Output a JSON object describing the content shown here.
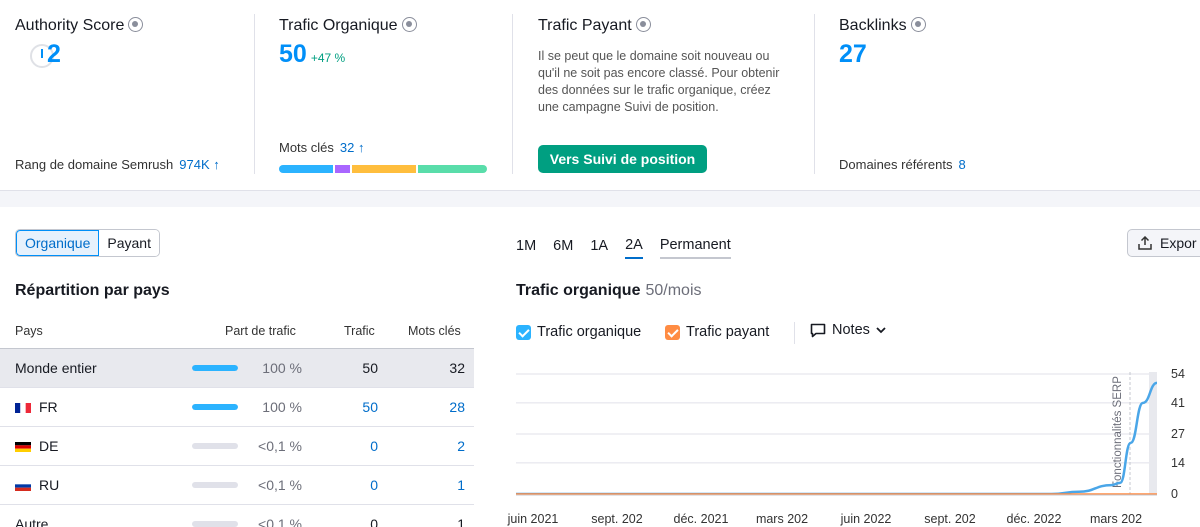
{
  "summary": {
    "authority": {
      "title": "Authority Score",
      "value": "2",
      "rank_label": "Rang de domaine Semrush",
      "rank_value": "974K ↑"
    },
    "organic": {
      "title": "Trafic Organique",
      "value": "50",
      "delta": "+47 %",
      "keywords_label": "Mots clés",
      "keywords_value": "32 ↑",
      "keyword_segments": [
        {
          "share": 0.26,
          "color": "#2bb3ff"
        },
        {
          "share": 0.08,
          "color": "#a966ff"
        },
        {
          "share": 0.32,
          "color": "#ffbe3d"
        },
        {
          "share": 0.34,
          "color": "#59ddaa"
        }
      ]
    },
    "paid": {
      "title": "Trafic Payant",
      "message": "Il se peut que le domaine soit nouveau ou qu'il ne soit pas encore classé. Pour obtenir des données sur le trafic organique, créez une campagne Suivi de position.",
      "cta": "Vers Suivi de position"
    },
    "backlinks": {
      "title": "Backlinks",
      "value": "27",
      "ref_label": "Domaines référents",
      "ref_value": "8"
    }
  },
  "toggle": {
    "organic": "Organique",
    "paid": "Payant"
  },
  "countries": {
    "title": "Répartition par pays",
    "headers": {
      "country": "Pays",
      "share": "Part de trafic",
      "traffic": "Trafic",
      "keywords": "Mots clés"
    },
    "rows": [
      {
        "name": "Monde entier",
        "share": "100 %",
        "share_value": 1.0,
        "traffic": "50",
        "keywords": "32",
        "flag": ""
      },
      {
        "name": "FR",
        "share": "100 %",
        "share_value": 1.0,
        "traffic": "50",
        "keywords": "28",
        "flag": "fr-flag-icon"
      },
      {
        "name": "DE",
        "share": "<0,1 %",
        "share_value": 0,
        "traffic": "0",
        "keywords": "2",
        "flag": "de-flag-icon"
      },
      {
        "name": "RU",
        "share": "<0,1 %",
        "share_value": 0,
        "traffic": "0",
        "keywords": "1",
        "flag": "ru-flag-icon"
      },
      {
        "name": "Autre",
        "share": "<0,1 %",
        "share_value": 0,
        "traffic": "0",
        "keywords": "1",
        "flag": ""
      }
    ]
  },
  "periods": [
    "1M",
    "6M",
    "1A",
    "2A",
    "Permanent"
  ],
  "active_period": "2A",
  "export_label": "Expor",
  "traffic_chart": {
    "title": "Trafic organique",
    "subtitle": "50/mois",
    "legend_organic": "Trafic organique",
    "legend_paid": "Trafic payant",
    "notes": "Notes",
    "serp_label": "Fonctionnalités SERP",
    "colors": {
      "organic": "#4aa6e8",
      "paid": "#ff8c43",
      "organic_check": "#2bb3ff",
      "paid_check": "#ff8c43"
    }
  },
  "chart_data": {
    "type": "line",
    "title": "Trafic organique",
    "subtitle": "50/mois",
    "x_tick_labels": [
      "juin 2021",
      "sept. 202",
      "déc. 2021",
      "mars 202",
      "juin 2022",
      "sept. 202",
      "déc. 2022",
      "mars 202"
    ],
    "y_tick_labels": [
      "54",
      "41",
      "27",
      "14",
      "0"
    ],
    "ylim": [
      0,
      54
    ],
    "grid": true,
    "series": [
      {
        "name": "Trafic organique",
        "x": [
          "2021-05",
          "2021-08",
          "2021-11",
          "2022-02",
          "2022-05",
          "2022-08",
          "2022-11",
          "2023-01",
          "2023-02",
          "2023-03-10",
          "2023-03-20",
          "2023-04",
          "2023-04-15",
          "2023-05"
        ],
        "y": [
          0,
          0,
          0,
          0,
          0,
          0,
          0,
          0,
          1,
          4,
          5,
          23,
          41,
          50
        ]
      },
      {
        "name": "Trafic payant",
        "x": [
          "2021-05",
          "2023-05"
        ],
        "y": [
          0,
          0
        ]
      }
    ]
  }
}
